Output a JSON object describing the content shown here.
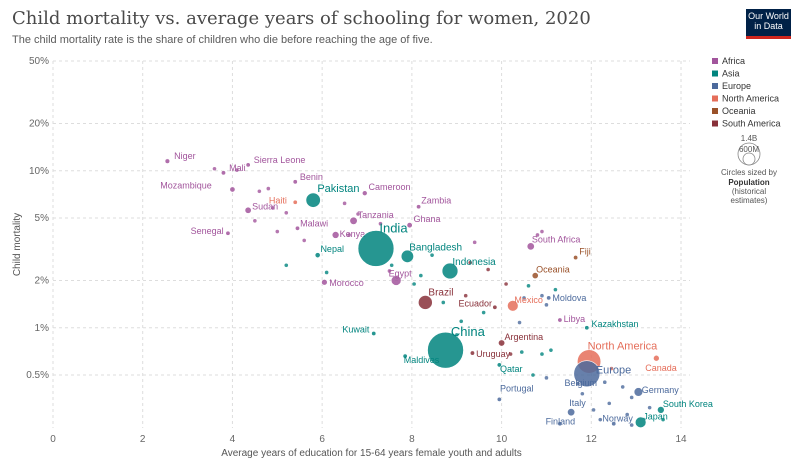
{
  "header": {
    "title": "Child mortality vs. average years of schooling for women, 2020",
    "subtitle": "The child mortality rate is the share of children who die before reaching the age of five."
  },
  "logo": {
    "line1": "Our World",
    "line2": "in Data"
  },
  "colors": {
    "Africa": "#a2559c",
    "Asia": "#00847e",
    "Europe": "#4c6a9c",
    "North America": "#e56e5a",
    "Oceania": "#9a5129",
    "South America": "#883039",
    "grid": "#dddddd"
  },
  "size_legend": {
    "big_label": "1.4B",
    "small_label": "600M",
    "caption_lines": [
      "Circles sized by"
    ],
    "title_line": "Population",
    "note_lines": [
      "(historical",
      "estimates)"
    ]
  },
  "chart_data": {
    "type": "scatter",
    "title": "Child mortality vs. average years of schooling for women, 2020",
    "subtitle": "The child mortality rate is the share of children who die before reaching the age of five.",
    "xlabel": "Average years of education for 15-64 years female youth and adults",
    "ylabel": "Child mortality",
    "x_range": [
      0,
      14.2
    ],
    "y_range": [
      0.23,
      50
    ],
    "y_scale": "log",
    "x_ticks": [
      0,
      2,
      4,
      6,
      8,
      10,
      12,
      14
    ],
    "y_ticks": [
      {
        "value": 50,
        "label": "50%"
      },
      {
        "value": 20,
        "label": "20%"
      },
      {
        "value": 10,
        "label": "10%"
      },
      {
        "value": 5,
        "label": "5%"
      },
      {
        "value": 2,
        "label": "2%"
      },
      {
        "value": 1,
        "label": "1%"
      },
      {
        "value": 0.5,
        "label": "0.5%"
      }
    ],
    "legend": [
      "Africa",
      "Asia",
      "Europe",
      "North America",
      "Oceania",
      "South America"
    ],
    "points": [
      {
        "name": "Niger",
        "x": 2.55,
        "y": 11.5,
        "region": "Africa",
        "pop": 24
      },
      {
        "name": "Mali",
        "x": 3.8,
        "y": 9.7,
        "region": "Africa",
        "pop": 21
      },
      {
        "name": "Sierra Leone",
        "x": 4.35,
        "y": 10.9,
        "region": "Africa",
        "pop": 8
      },
      {
        "name": "Benin",
        "x": 5.4,
        "y": 8.5,
        "region": "Africa",
        "pop": 12
      },
      {
        "name": "Mozambique",
        "x": 4.0,
        "y": 7.6,
        "region": "Africa",
        "pop": 31
      },
      {
        "name": "Pakistan",
        "x": 5.8,
        "y": 6.5,
        "region": "Asia",
        "pop": 227
      },
      {
        "name": "Cameroon",
        "x": 6.95,
        "y": 7.2,
        "region": "Africa",
        "pop": 27
      },
      {
        "name": "Haiti",
        "x": 5.4,
        "y": 6.3,
        "region": "North America",
        "pop": 11
      },
      {
        "name": "Sudan",
        "x": 4.35,
        "y": 5.6,
        "region": "Africa",
        "pop": 44
      },
      {
        "name": "Zambia",
        "x": 8.15,
        "y": 5.9,
        "region": "Africa",
        "pop": 19
      },
      {
        "name": "Tanzania",
        "x": 6.7,
        "y": 4.8,
        "region": "Africa",
        "pop": 61
      },
      {
        "name": "Ghana",
        "x": 7.95,
        "y": 4.5,
        "region": "Africa",
        "pop": 32
      },
      {
        "name": "Malawi",
        "x": 5.45,
        "y": 4.3,
        "region": "Africa",
        "pop": 19
      },
      {
        "name": "Kenya",
        "x": 6.3,
        "y": 3.9,
        "region": "Africa",
        "pop": 53
      },
      {
        "name": "Senegal",
        "x": 3.9,
        "y": 4.0,
        "region": "Africa",
        "pop": 17
      },
      {
        "name": "India",
        "x": 7.2,
        "y": 3.2,
        "region": "Asia",
        "pop": 1400
      },
      {
        "name": "Bangladesh",
        "x": 7.9,
        "y": 2.85,
        "region": "Asia",
        "pop": 168
      },
      {
        "name": "Nepal",
        "x": 5.9,
        "y": 2.9,
        "region": "Asia",
        "pop": 29
      },
      {
        "name": "South Africa",
        "x": 10.65,
        "y": 3.3,
        "region": "Africa",
        "pop": 59
      },
      {
        "name": "Fiji",
        "x": 11.65,
        "y": 2.8,
        "region": "Oceania",
        "pop": 1
      },
      {
        "name": "Indonesia",
        "x": 8.85,
        "y": 2.3,
        "region": "Asia",
        "pop": 274
      },
      {
        "name": "Egypt",
        "x": 7.65,
        "y": 2.0,
        "region": "Africa",
        "pop": 107
      },
      {
        "name": "Morocco",
        "x": 6.05,
        "y": 1.95,
        "region": "Africa",
        "pop": 37
      },
      {
        "name": "Oceania",
        "x": 10.75,
        "y": 2.15,
        "region": "Oceania",
        "pop": 43
      },
      {
        "name": "Brazil",
        "x": 8.3,
        "y": 1.45,
        "region": "South America",
        "pop": 213
      },
      {
        "name": "Ecuador",
        "x": 9.85,
        "y": 1.35,
        "region": "South America",
        "pop": 18
      },
      {
        "name": "Mexico",
        "x": 10.25,
        "y": 1.38,
        "region": "North America",
        "pop": 126
      },
      {
        "name": "Moldova",
        "x": 11.05,
        "y": 1.55,
        "region": "Europe",
        "pop": 3
      },
      {
        "name": "Libya",
        "x": 11.3,
        "y": 1.12,
        "region": "Africa",
        "pop": 7
      },
      {
        "name": "Kazakhstan",
        "x": 11.9,
        "y": 1.0,
        "region": "Asia",
        "pop": 19
      },
      {
        "name": "Kuwait",
        "x": 7.15,
        "y": 0.92,
        "region": "Asia",
        "pop": 4
      },
      {
        "name": "China",
        "x": 8.75,
        "y": 0.72,
        "region": "Asia",
        "pop": 1420
      },
      {
        "name": "Argentina",
        "x": 10.0,
        "y": 0.8,
        "region": "South America",
        "pop": 45
      },
      {
        "name": "Maldives",
        "x": 7.85,
        "y": 0.66,
        "region": "Asia",
        "pop": 1
      },
      {
        "name": "Uruguay",
        "x": 9.35,
        "y": 0.69,
        "region": "South America",
        "pop": 3
      },
      {
        "name": "Qatar",
        "x": 9.95,
        "y": 0.58,
        "region": "Asia",
        "pop": 3
      },
      {
        "name": "North America",
        "x": 11.95,
        "y": 0.61,
        "region": "North America",
        "pop": 600
      },
      {
        "name": "Canada",
        "x": 13.45,
        "y": 0.64,
        "region": "North America",
        "pop": 38
      },
      {
        "name": "Europe",
        "x": 11.9,
        "y": 0.51,
        "region": "Europe",
        "pop": 740
      },
      {
        "name": "Belgium",
        "x": 11.7,
        "y": 0.44,
        "region": "Europe",
        "pop": 11
      },
      {
        "name": "Germany",
        "x": 13.05,
        "y": 0.39,
        "region": "Europe",
        "pop": 83
      },
      {
        "name": "Portugal",
        "x": 9.95,
        "y": 0.35,
        "region": "Europe",
        "pop": 10
      },
      {
        "name": "South Korea",
        "x": 13.55,
        "y": 0.3,
        "region": "Asia",
        "pop": 52
      },
      {
        "name": "Italy",
        "x": 11.55,
        "y": 0.29,
        "region": "Europe",
        "pop": 59
      },
      {
        "name": "Japan",
        "x": 13.1,
        "y": 0.25,
        "region": "Asia",
        "pop": 126
      },
      {
        "name": "Finland",
        "x": 11.3,
        "y": 0.245,
        "region": "Europe",
        "pop": 6
      },
      {
        "name": "Norway",
        "x": 12.5,
        "y": 0.245,
        "region": "Europe",
        "pop": 5
      }
    ]
  }
}
